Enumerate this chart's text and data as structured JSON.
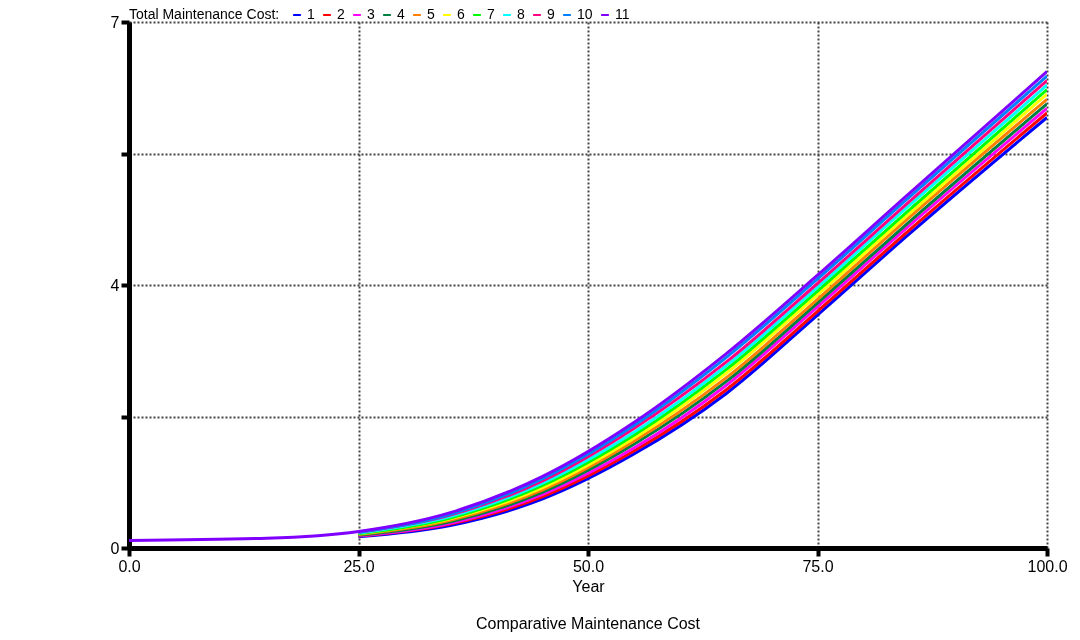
{
  "chart_data": {
    "type": "line",
    "title": "Comparative Maintenance Cost",
    "xlabel": "Year",
    "legend_title": "Total Maintenance  Cost:",
    "legend": "top left",
    "grid": true,
    "line_style": "solid",
    "marker": "none",
    "x": [
      0,
      15,
      25,
      35,
      45,
      55,
      65,
      75,
      85,
      100
    ],
    "xlim": [
      0,
      100
    ],
    "xticks": [
      {
        "value": 0,
        "label": "0.0"
      },
      {
        "value": 25,
        "label": "25.0"
      },
      {
        "value": 50,
        "label": "50.0"
      },
      {
        "value": 75,
        "label": "75.0"
      },
      {
        "value": 100,
        "label": "100.0"
      }
    ],
    "ylim": [
      0,
      7
    ],
    "yticks": [
      0,
      {
        "value": 1.75,
        "label": null
      },
      {
        "value": 3.5,
        "label": "4"
      },
      {
        "value": 5.25,
        "label": null
      },
      7
    ],
    "series": [
      {
        "name": "1",
        "color": "#0000ff",
        "values": [
          null,
          null,
          0.15,
          0.3,
          0.65,
          1.25,
          2.05,
          3.1,
          4.18,
          5.73
        ]
      },
      {
        "name": "2",
        "color": "#ff0000",
        "values": [
          null,
          null,
          0.16,
          0.32,
          0.68,
          1.29,
          2.1,
          3.15,
          4.23,
          5.79
        ]
      },
      {
        "name": "3",
        "color": "#ff00ff",
        "values": [
          null,
          null,
          0.16,
          0.33,
          0.71,
          1.33,
          2.16,
          3.21,
          4.29,
          5.85
        ]
      },
      {
        "name": "4",
        "color": "#008040",
        "values": [
          null,
          null,
          0.17,
          0.35,
          0.74,
          1.38,
          2.21,
          3.26,
          4.34,
          5.91
        ]
      },
      {
        "name": "5",
        "color": "#ff8000",
        "values": [
          null,
          null,
          0.18,
          0.37,
          0.77,
          1.42,
          2.26,
          3.31,
          4.4,
          5.97
        ]
      },
      {
        "name": "6",
        "color": "#ffff00",
        "values": [
          null,
          null,
          0.19,
          0.39,
          0.8,
          1.46,
          2.32,
          3.37,
          4.45,
          6.04
        ]
      },
      {
        "name": "7",
        "color": "#00ff00",
        "values": [
          null,
          null,
          0.19,
          0.4,
          0.83,
          1.5,
          2.37,
          3.42,
          4.5,
          6.1
        ]
      },
      {
        "name": "8",
        "color": "#00ffff",
        "values": [
          null,
          null,
          0.2,
          0.42,
          0.86,
          1.54,
          2.42,
          3.47,
          4.56,
          6.16
        ]
      },
      {
        "name": "9",
        "color": "#ff0080",
        "values": [
          null,
          null,
          0.21,
          0.44,
          0.89,
          1.59,
          2.47,
          3.52,
          4.61,
          6.22
        ]
      },
      {
        "name": "10",
        "color": "#0080ff",
        "values": [
          null,
          null,
          0.21,
          0.45,
          0.92,
          1.63,
          2.53,
          3.58,
          4.67,
          6.28
        ]
      },
      {
        "name": "11",
        "color": "#8000ff",
        "values": [
          0.1,
          0.13,
          0.22,
          0.47,
          0.95,
          1.67,
          2.58,
          3.63,
          4.72,
          6.34
        ]
      }
    ]
  }
}
